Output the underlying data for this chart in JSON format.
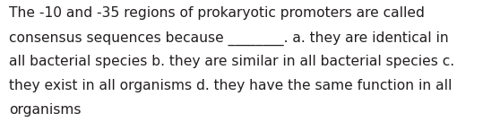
{
  "lines": [
    "The -10 and -35 regions of prokaryotic promoters are called",
    "consensus sequences because ________. a. they are identical in",
    "all bacterial species b. they are similar in all bacterial species c.",
    "they exist in all organisms d. they have the same function in all",
    "organisms"
  ],
  "background_color": "#ffffff",
  "text_color": "#231f20",
  "font_size": 11.2,
  "font_family": "DejaVu Sans"
}
